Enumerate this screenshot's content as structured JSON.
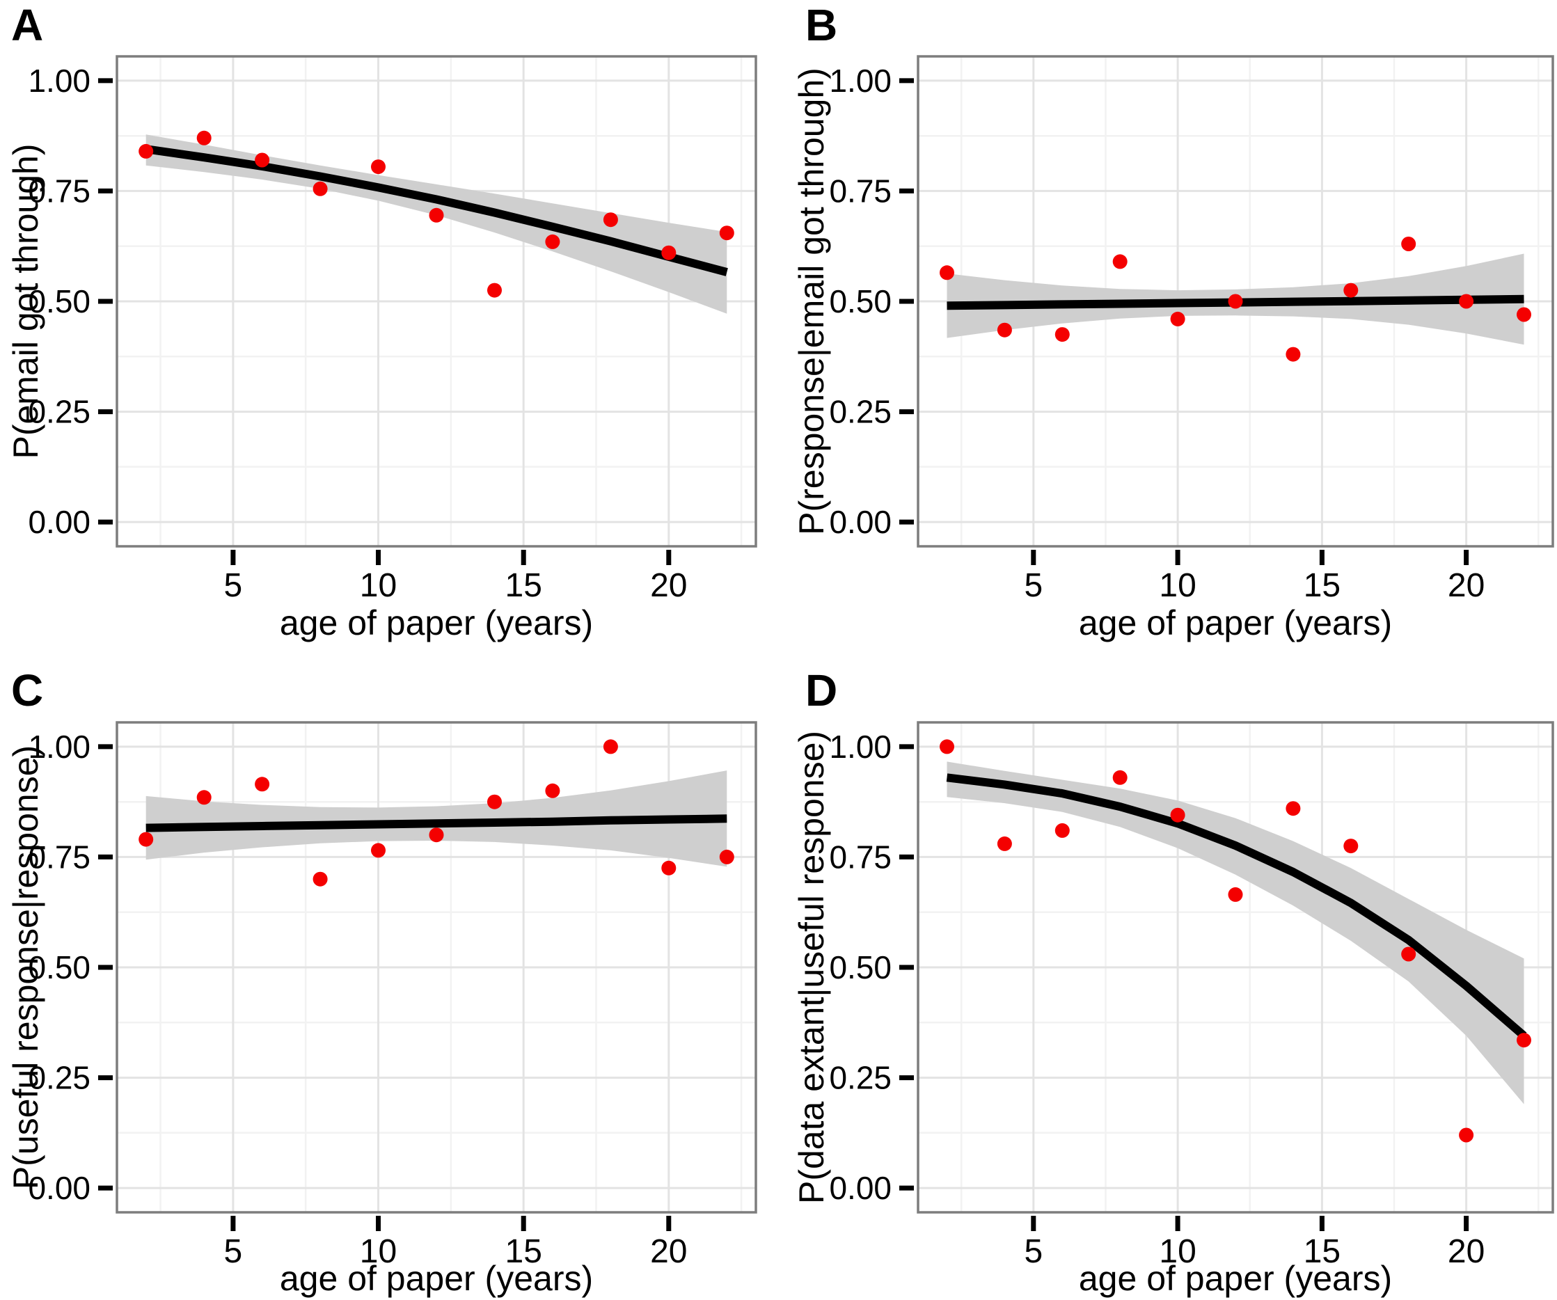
{
  "figure": {
    "xlabel_shared": "age of paper (years)"
  },
  "colors": {
    "point": "#F40000",
    "trend_line": "#000000",
    "confidence_band": "#CFCFCF",
    "grid_major": "#E3E3E3",
    "grid_minor": "#F2F2F2",
    "panel_border": "#7D7D7D",
    "text": "#000000",
    "background": "#FFFFFF"
  },
  "chart_data": [
    {
      "panel_label": "A",
      "type": "scatter",
      "xlabel": "age of paper (years)",
      "ylabel": "P(email got through)",
      "xlim": [
        1,
        23
      ],
      "ylim": [
        -0.055,
        1.055
      ],
      "x_ticks": [
        5,
        10,
        15,
        20
      ],
      "x_tick_labels": [
        "5",
        "10",
        "15",
        "20"
      ],
      "y_ticks": [
        0,
        0.25,
        0.5,
        0.75,
        1
      ],
      "y_tick_labels": [
        "0.00",
        "0.25",
        "0.50",
        "0.75",
        "1.00"
      ],
      "x_minor_ticks": [
        2.5,
        7.5,
        12.5,
        17.5,
        22.5
      ],
      "y_minor_ticks": [
        0.125,
        0.375,
        0.625,
        0.875
      ],
      "grid": true,
      "legend": "none",
      "x": [
        2,
        4,
        6,
        8,
        10,
        12,
        14,
        16,
        18,
        20,
        22
      ],
      "y": [
        0.84,
        0.87,
        0.82,
        0.755,
        0.805,
        0.695,
        0.525,
        0.635,
        0.685,
        0.61,
        0.655
      ],
      "trend": {
        "x": [
          2,
          4,
          6,
          8,
          10,
          12,
          14,
          16,
          18,
          20,
          22
        ],
        "y": [
          0.845,
          0.826,
          0.806,
          0.783,
          0.758,
          0.731,
          0.701,
          0.669,
          0.636,
          0.601,
          0.566
        ]
      },
      "ci": {
        "x": [
          2,
          4,
          6,
          8,
          10,
          12,
          14,
          16,
          18,
          20,
          22
        ],
        "upper": [
          0.878,
          0.855,
          0.831,
          0.808,
          0.786,
          0.765,
          0.744,
          0.722,
          0.7,
          0.678,
          0.657
        ],
        "lower": [
          0.808,
          0.793,
          0.776,
          0.755,
          0.728,
          0.695,
          0.656,
          0.613,
          0.568,
          0.521,
          0.472
        ]
      }
    },
    {
      "panel_label": "B",
      "type": "scatter",
      "xlabel": "age of paper (years)",
      "ylabel": "P(response|email got through)",
      "xlim": [
        1,
        23
      ],
      "ylim": [
        -0.055,
        1.055
      ],
      "x_ticks": [
        5,
        10,
        15,
        20
      ],
      "x_tick_labels": [
        "5",
        "10",
        "15",
        "20"
      ],
      "y_ticks": [
        0,
        0.25,
        0.5,
        0.75,
        1
      ],
      "y_tick_labels": [
        "0.00",
        "0.25",
        "0.50",
        "0.75",
        "1.00"
      ],
      "x_minor_ticks": [
        2.5,
        7.5,
        12.5,
        17.5,
        22.5
      ],
      "y_minor_ticks": [
        0.125,
        0.375,
        0.625,
        0.875
      ],
      "grid": true,
      "legend": "none",
      "x": [
        2,
        4,
        6,
        8,
        10,
        12,
        14,
        16,
        18,
        20,
        22
      ],
      "y": [
        0.565,
        0.435,
        0.425,
        0.59,
        0.46,
        0.5,
        0.38,
        0.525,
        0.63,
        0.5,
        0.47
      ],
      "trend": {
        "x": [
          2,
          4,
          6,
          8,
          10,
          12,
          14,
          16,
          18,
          20,
          22
        ],
        "y": [
          0.49,
          0.4915,
          0.493,
          0.4945,
          0.496,
          0.4975,
          0.499,
          0.5005,
          0.502,
          0.5035,
          0.505
        ]
      },
      "ci": {
        "x": [
          2,
          4,
          6,
          8,
          10,
          12,
          14,
          16,
          18,
          20,
          22
        ],
        "upper": [
          0.563,
          0.548,
          0.536,
          0.528,
          0.525,
          0.527,
          0.532,
          0.541,
          0.557,
          0.58,
          0.608
        ],
        "lower": [
          0.417,
          0.435,
          0.45,
          0.461,
          0.467,
          0.468,
          0.466,
          0.46,
          0.447,
          0.427,
          0.402
        ]
      }
    },
    {
      "panel_label": "C",
      "type": "scatter",
      "xlabel": "age of paper (years)",
      "ylabel": "P(useful response|response)",
      "xlim": [
        1,
        23
      ],
      "ylim": [
        -0.055,
        1.055
      ],
      "x_ticks": [
        5,
        10,
        15,
        20
      ],
      "x_tick_labels": [
        "5",
        "10",
        "15",
        "20"
      ],
      "y_ticks": [
        0,
        0.25,
        0.5,
        0.75,
        1
      ],
      "y_tick_labels": [
        "0.00",
        "0.25",
        "0.50",
        "0.75",
        "1.00"
      ],
      "x_minor_ticks": [
        2.5,
        7.5,
        12.5,
        17.5,
        22.5
      ],
      "y_minor_ticks": [
        0.125,
        0.375,
        0.625,
        0.875
      ],
      "grid": true,
      "legend": "none",
      "x": [
        2,
        4,
        6,
        8,
        10,
        12,
        14,
        16,
        18,
        20,
        22
      ],
      "y": [
        0.79,
        0.885,
        0.915,
        0.7,
        0.765,
        0.8,
        0.875,
        0.9,
        1.0,
        0.725,
        0.75
      ],
      "trend": {
        "x": [
          2,
          4,
          6,
          8,
          10,
          12,
          14,
          16,
          18,
          20,
          22
        ],
        "y": [
          0.816,
          0.818,
          0.82,
          0.822,
          0.824,
          0.826,
          0.828,
          0.83,
          0.833,
          0.835,
          0.837
        ]
      },
      "ci": {
        "x": [
          2,
          4,
          6,
          8,
          10,
          12,
          14,
          16,
          18,
          20,
          22
        ],
        "upper": [
          0.888,
          0.876,
          0.868,
          0.863,
          0.862,
          0.865,
          0.872,
          0.884,
          0.901,
          0.922,
          0.946
        ],
        "lower": [
          0.744,
          0.76,
          0.772,
          0.781,
          0.786,
          0.787,
          0.784,
          0.776,
          0.765,
          0.748,
          0.728
        ]
      }
    },
    {
      "panel_label": "D",
      "type": "scatter",
      "xlabel": "age of paper (years)",
      "ylabel": "P(data extant|useful response)",
      "xlim": [
        1,
        23
      ],
      "ylim": [
        -0.055,
        1.055
      ],
      "x_ticks": [
        5,
        10,
        15,
        20
      ],
      "x_tick_labels": [
        "5",
        "10",
        "15",
        "20"
      ],
      "y_ticks": [
        0,
        0.25,
        0.5,
        0.75,
        1
      ],
      "y_tick_labels": [
        "0.00",
        "0.25",
        "0.50",
        "0.75",
        "1.00"
      ],
      "x_minor_ticks": [
        2.5,
        7.5,
        12.5,
        17.5,
        22.5
      ],
      "y_minor_ticks": [
        0.125,
        0.375,
        0.625,
        0.875
      ],
      "grid": true,
      "legend": "none",
      "x": [
        2,
        4,
        6,
        8,
        10,
        12,
        14,
        16,
        18,
        20,
        22
      ],
      "y": [
        1.0,
        0.78,
        0.81,
        0.93,
        0.845,
        0.665,
        0.86,
        0.775,
        0.53,
        0.12,
        0.335
      ],
      "trend": {
        "x": [
          2,
          4,
          6,
          8,
          10,
          12,
          14,
          16,
          18,
          20,
          22
        ],
        "y": [
          0.93,
          0.914,
          0.894,
          0.864,
          0.826,
          0.776,
          0.716,
          0.646,
          0.562,
          0.458,
          0.345
        ]
      },
      "ci": {
        "x": [
          2,
          4,
          6,
          8,
          10,
          12,
          14,
          16,
          18,
          20,
          22
        ],
        "upper": [
          0.966,
          0.945,
          0.925,
          0.905,
          0.878,
          0.838,
          0.786,
          0.725,
          0.655,
          0.585,
          0.52
        ],
        "lower": [
          0.886,
          0.872,
          0.852,
          0.818,
          0.77,
          0.71,
          0.64,
          0.56,
          0.468,
          0.345,
          0.19
        ]
      }
    }
  ]
}
